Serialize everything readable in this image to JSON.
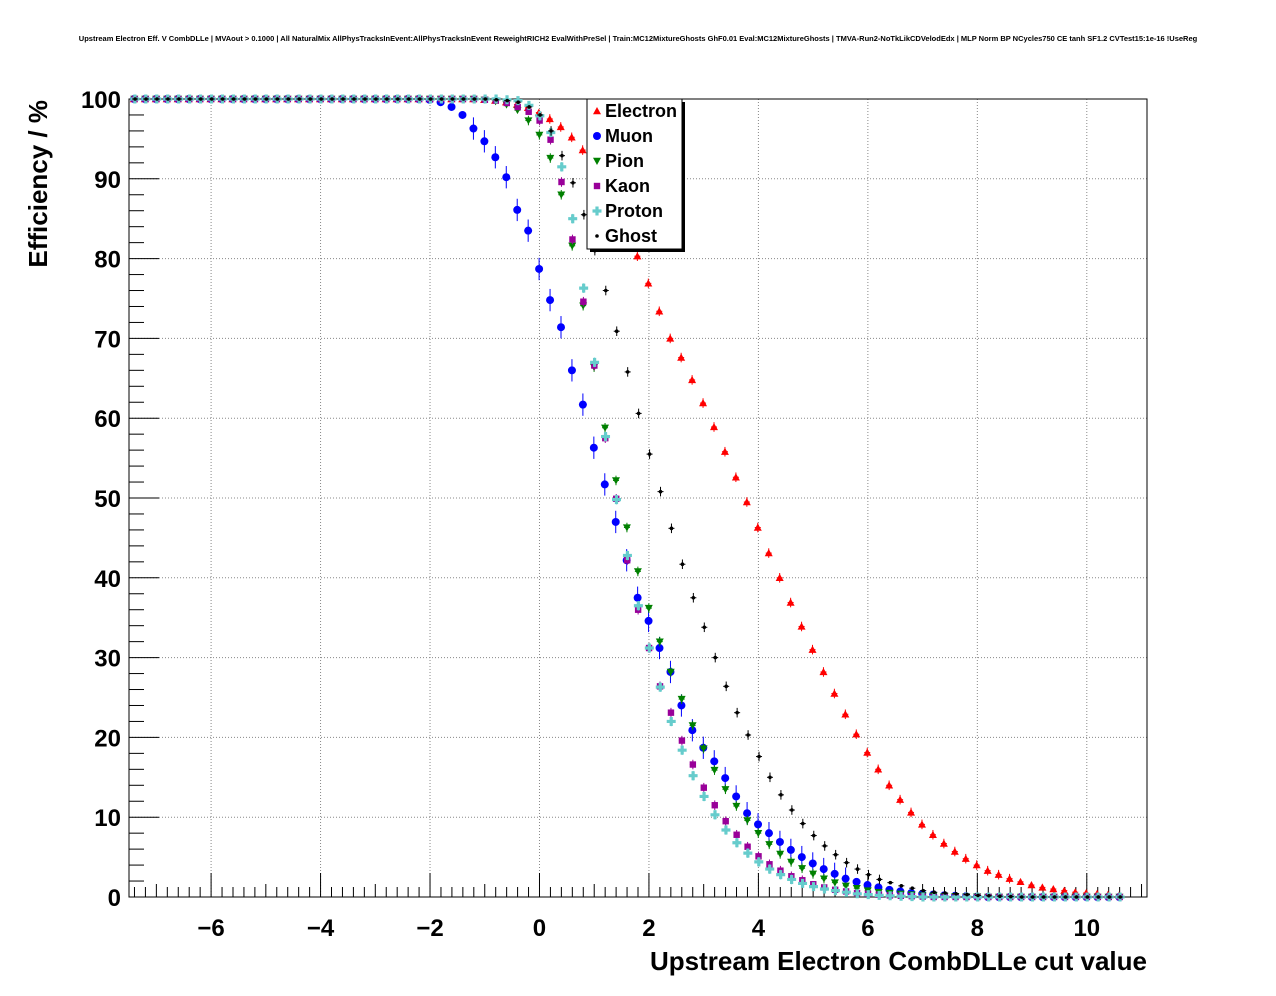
{
  "chart_data": {
    "type": "scatter",
    "title": "Upstream Electron Eff. V CombDLLe | MVAout > 0.1000 | All NaturalMix AllPhysTracksInEvent:AllPhysTracksInEvent ReweightRICH2 EvalWithPreSel | Train:MC12MixtureGhosts GhF0.01 Eval:MC12MixtureGhosts | TMVA-Run2-NoTkLikCDVelodEdx | MLP Norm BP NCycles750 CE tanh SF1.2 CVTest15:1e-16 !UseReg",
    "xlabel": "Upstream Electron CombDLLe cut value",
    "ylabel": "Efficiency / %",
    "xlim": [
      -7.5,
      11.1
    ],
    "ylim": [
      0,
      100
    ],
    "x_ticks": [
      -6,
      -4,
      -2,
      0,
      2,
      4,
      6,
      8,
      10
    ],
    "x_tick_labels": [
      "−6",
      "−4",
      "−2",
      "0",
      "2",
      "4",
      "6",
      "8",
      "10"
    ],
    "y_ticks": [
      0,
      10,
      20,
      30,
      40,
      50,
      60,
      70,
      80,
      90,
      100
    ],
    "y_tick_labels": [
      "0",
      "10",
      "20",
      "30",
      "40",
      "50",
      "60",
      "70",
      "80",
      "90",
      "100"
    ],
    "grid": true,
    "legend_position": "top-center",
    "series": [
      {
        "name": "Electron",
        "color": "#ff0000",
        "marker": "triangle-up",
        "x": [
          -7.4,
          -7.2,
          -7.0,
          -6.8,
          -6.6,
          -6.4,
          -6.2,
          -6.0,
          -5.8,
          -5.6,
          -5.4,
          -5.2,
          -5.0,
          -4.8,
          -4.6,
          -4.4,
          -4.2,
          -4.0,
          -3.8,
          -3.6,
          -3.4,
          -3.2,
          -3.0,
          -2.8,
          -2.6,
          -2.4,
          -2.2,
          -2.0,
          -1.8,
          -1.6,
          -1.4,
          -1.2,
          -1.0,
          -0.8,
          -0.6,
          -0.4,
          -0.2,
          0.0,
          0.2,
          0.4,
          0.6,
          0.8,
          1.0,
          1.2,
          1.4,
          1.6,
          1.8,
          2.0,
          2.2,
          2.4,
          2.6,
          2.8,
          3.0,
          3.2,
          3.4,
          3.6,
          3.8,
          4.0,
          4.2,
          4.4,
          4.6,
          4.8,
          5.0,
          5.2,
          5.4,
          5.6,
          5.8,
          6.0,
          6.2,
          6.4,
          6.6,
          6.8,
          7.0,
          7.2,
          7.4,
          7.6,
          7.8,
          8.0,
          8.2,
          8.4,
          8.6,
          8.8,
          9.0,
          9.2,
          9.4,
          9.6,
          9.8,
          10.0,
          10.2,
          10.4,
          10.6
        ],
        "y": [
          100,
          100,
          100,
          100,
          100,
          100,
          100,
          100,
          100,
          100,
          100,
          100,
          100,
          100,
          100,
          100,
          100,
          100,
          100,
          100,
          100,
          100,
          100,
          100,
          100,
          100,
          100,
          100,
          100,
          100,
          100,
          100,
          99.9,
          99.8,
          99.6,
          99.3,
          98.9,
          98.3,
          97.5,
          96.5,
          95.2,
          93.6,
          91.6,
          89.2,
          86.5,
          83.5,
          80.3,
          76.9,
          73.4,
          70.0,
          67.6,
          64.8,
          61.9,
          58.9,
          55.8,
          52.6,
          49.5,
          46.3,
          43.1,
          40.0,
          36.9,
          33.9,
          31.0,
          28.2,
          25.5,
          22.9,
          20.4,
          18.1,
          16.0,
          14.0,
          12.2,
          10.6,
          9.1,
          7.8,
          6.7,
          5.7,
          4.8,
          4.0,
          3.3,
          2.8,
          2.3,
          1.9,
          1.5,
          1.2,
          1.0,
          0.8,
          0.6,
          0.5,
          0.4,
          0.3,
          0.2
        ]
      },
      {
        "name": "Muon",
        "color": "#0000ff",
        "marker": "circle",
        "x": [
          -7.4,
          -7.2,
          -7.0,
          -6.8,
          -6.6,
          -6.4,
          -6.2,
          -6.0,
          -5.8,
          -5.6,
          -5.4,
          -5.2,
          -5.0,
          -4.8,
          -4.6,
          -4.4,
          -4.2,
          -4.0,
          -3.8,
          -3.6,
          -3.4,
          -3.2,
          -3.0,
          -2.8,
          -2.6,
          -2.4,
          -2.2,
          -2.0,
          -1.8,
          -1.6,
          -1.4,
          -1.2,
          -1.0,
          -0.8,
          -0.6,
          -0.4,
          -0.2,
          0.0,
          0.2,
          0.4,
          0.6,
          0.8,
          1.0,
          1.2,
          1.4,
          1.6,
          1.8,
          2.0,
          2.2,
          2.4,
          2.6,
          2.8,
          3.0,
          3.2,
          3.4,
          3.6,
          3.8,
          4.0,
          4.2,
          4.4,
          4.6,
          4.8,
          5.0,
          5.2,
          5.4,
          5.6,
          5.8,
          6.0,
          6.2,
          6.4,
          6.6,
          6.8,
          7.0,
          7.2,
          7.4,
          7.6,
          7.8,
          8.0,
          8.2,
          8.4,
          8.6,
          8.8,
          9.0,
          9.2,
          9.4,
          9.6,
          9.8,
          10.0,
          10.2,
          10.4,
          10.6
        ],
        "y": [
          100,
          100,
          100,
          100,
          100,
          100,
          100,
          100,
          100,
          100,
          100,
          100,
          100,
          100,
          100,
          100,
          100,
          100,
          100,
          100,
          100,
          100,
          100,
          100,
          100,
          100,
          100,
          99.9,
          99.6,
          99.0,
          98.0,
          96.3,
          94.7,
          92.7,
          90.2,
          86.1,
          83.5,
          78.7,
          74.8,
          71.4,
          66.0,
          61.7,
          56.3,
          51.7,
          47.0,
          42.2,
          37.5,
          34.6,
          31.2,
          28.2,
          24.0,
          20.9,
          18.7,
          17.0,
          14.9,
          12.6,
          10.5,
          9.1,
          8.0,
          6.9,
          5.9,
          5.0,
          4.2,
          3.5,
          2.9,
          2.3,
          1.9,
          1.5,
          1.2,
          0.9,
          0.7,
          0.5,
          0.4,
          0.3,
          0.2,
          0.15,
          0.1,
          0.05,
          0,
          0,
          0,
          0,
          0,
          0,
          0,
          0,
          0,
          0,
          0,
          0,
          0
        ]
      },
      {
        "name": "Pion",
        "color": "#008000",
        "marker": "triangle-down",
        "x": [
          -7.4,
          -7.2,
          -7.0,
          -6.8,
          -6.6,
          -6.4,
          -6.2,
          -6.0,
          -5.8,
          -5.6,
          -5.4,
          -5.2,
          -5.0,
          -4.8,
          -4.6,
          -4.4,
          -4.2,
          -4.0,
          -3.8,
          -3.6,
          -3.4,
          -3.2,
          -3.0,
          -2.8,
          -2.6,
          -2.4,
          -2.2,
          -2.0,
          -1.8,
          -1.6,
          -1.4,
          -1.2,
          -1.0,
          -0.8,
          -0.6,
          -0.4,
          -0.2,
          0.0,
          0.2,
          0.4,
          0.6,
          0.8,
          1.0,
          1.2,
          1.4,
          1.6,
          1.8,
          2.0,
          2.2,
          2.4,
          2.6,
          2.8,
          3.0,
          3.2,
          3.4,
          3.6,
          3.8,
          4.0,
          4.2,
          4.4,
          4.6,
          4.8,
          5.0,
          5.2,
          5.4,
          5.6,
          5.8,
          6.0,
          6.2,
          6.4,
          6.6,
          6.8,
          7.0,
          7.2,
          7.4,
          7.6,
          7.8,
          8.0,
          8.2,
          8.4,
          8.6,
          8.8,
          9.0,
          9.2,
          9.4,
          9.6,
          9.8,
          10.0,
          10.2,
          10.4,
          10.6
        ],
        "y": [
          100,
          100,
          100,
          100,
          100,
          100,
          100,
          100,
          100,
          100,
          100,
          100,
          100,
          100,
          100,
          100,
          100,
          100,
          100,
          100,
          100,
          100,
          100,
          100,
          100,
          100,
          100,
          100,
          100,
          100,
          100,
          100,
          99.9,
          99.7,
          99.3,
          98.6,
          97.3,
          95.5,
          92.6,
          88.0,
          81.6,
          74.1,
          66.4,
          58.8,
          52.2,
          46.3,
          40.8,
          36.2,
          32.0,
          28.2,
          24.8,
          21.5,
          18.6,
          15.9,
          13.5,
          11.4,
          9.6,
          8.0,
          6.6,
          5.4,
          4.4,
          3.6,
          2.9,
          2.3,
          1.8,
          1.4,
          1.1,
          0.8,
          0.6,
          0.5,
          0.4,
          0.3,
          0.2,
          0.15,
          0.1,
          0.1,
          0.05,
          0.05,
          0,
          0,
          0,
          0,
          0,
          0,
          0,
          0,
          0,
          0,
          0,
          0,
          0
        ]
      },
      {
        "name": "Kaon",
        "color": "#990099",
        "marker": "square",
        "x": [
          -7.4,
          -7.2,
          -7.0,
          -6.8,
          -6.6,
          -6.4,
          -6.2,
          -6.0,
          -5.8,
          -5.6,
          -5.4,
          -5.2,
          -5.0,
          -4.8,
          -4.6,
          -4.4,
          -4.2,
          -4.0,
          -3.8,
          -3.6,
          -3.4,
          -3.2,
          -3.0,
          -2.8,
          -2.6,
          -2.4,
          -2.2,
          -2.0,
          -1.8,
          -1.6,
          -1.4,
          -1.2,
          -1.0,
          -0.8,
          -0.6,
          -0.4,
          -0.2,
          0.0,
          0.2,
          0.4,
          0.6,
          0.8,
          1.0,
          1.2,
          1.4,
          1.6,
          1.8,
          2.0,
          2.2,
          2.4,
          2.6,
          2.8,
          3.0,
          3.2,
          3.4,
          3.6,
          3.8,
          4.0,
          4.2,
          4.4,
          4.6,
          4.8,
          5.0,
          5.2,
          5.4,
          5.6,
          5.8,
          6.0,
          6.2,
          6.4,
          6.6,
          6.8,
          7.0,
          7.2,
          7.4,
          7.6,
          7.8,
          8.0,
          8.2,
          8.4,
          8.6,
          8.8,
          9.0,
          9.2,
          9.4,
          9.6,
          9.8,
          10.0,
          10.2,
          10.4,
          10.6
        ],
        "y": [
          100,
          100,
          100,
          100,
          100,
          100,
          100,
          100,
          100,
          100,
          100,
          100,
          100,
          100,
          100,
          100,
          100,
          100,
          100,
          100,
          100,
          100,
          100,
          100,
          100,
          100,
          100,
          100,
          100,
          100,
          100,
          100,
          99.9,
          99.8,
          99.5,
          99.0,
          98.4,
          97.3,
          94.9,
          89.6,
          82.4,
          74.6,
          66.6,
          57.5,
          49.9,
          42.2,
          36.0,
          31.2,
          26.4,
          23.1,
          19.6,
          16.6,
          13.7,
          11.5,
          9.5,
          7.8,
          6.3,
          5.1,
          4.1,
          3.3,
          2.6,
          2.1,
          1.6,
          1.2,
          0.9,
          0.7,
          0.5,
          0.4,
          0.3,
          0.2,
          0.15,
          0.1,
          0.05,
          0,
          0,
          0,
          0,
          0,
          0,
          0,
          0,
          0,
          0,
          0,
          0,
          0,
          0,
          0,
          0,
          0,
          0
        ]
      },
      {
        "name": "Proton",
        "color": "#66cccc",
        "marker": "cross",
        "x": [
          -7.4,
          -7.2,
          -7.0,
          -6.8,
          -6.6,
          -6.4,
          -6.2,
          -6.0,
          -5.8,
          -5.6,
          -5.4,
          -5.2,
          -5.0,
          -4.8,
          -4.6,
          -4.4,
          -4.2,
          -4.0,
          -3.8,
          -3.6,
          -3.4,
          -3.2,
          -3.0,
          -2.8,
          -2.6,
          -2.4,
          -2.2,
          -2.0,
          -1.8,
          -1.6,
          -1.4,
          -1.2,
          -1.0,
          -0.8,
          -0.6,
          -0.4,
          -0.2,
          0.0,
          0.2,
          0.4,
          0.6,
          0.8,
          1.0,
          1.2,
          1.4,
          1.6,
          1.8,
          2.0,
          2.2,
          2.4,
          2.6,
          2.8,
          3.0,
          3.2,
          3.4,
          3.6,
          3.8,
          4.0,
          4.2,
          4.4,
          4.6,
          4.8,
          5.0,
          5.2,
          5.4,
          5.6,
          5.8,
          6.0,
          6.2,
          6.4,
          6.6,
          6.8,
          7.0,
          7.2,
          7.4,
          7.6,
          7.8,
          8.0,
          8.2,
          8.4,
          8.6,
          8.8,
          9.0,
          9.2,
          9.4,
          9.6,
          9.8,
          10.0,
          10.2,
          10.4,
          10.6
        ],
        "y": [
          100,
          100,
          100,
          100,
          100,
          100,
          100,
          100,
          100,
          100,
          100,
          100,
          100,
          100,
          100,
          100,
          100,
          100,
          100,
          100,
          100,
          100,
          100,
          100,
          100,
          100,
          100,
          100,
          100,
          100,
          100,
          100,
          100,
          100,
          99.9,
          99.8,
          99.2,
          97.9,
          95.8,
          91.5,
          85.0,
          76.3,
          67.0,
          57.7,
          49.8,
          42.8,
          36.5,
          31.2,
          26.3,
          22.0,
          18.4,
          15.2,
          12.6,
          10.3,
          8.4,
          6.8,
          5.5,
          4.4,
          3.5,
          2.8,
          2.2,
          1.7,
          1.3,
          1.0,
          0.8,
          0.6,
          0.4,
          0.3,
          0.2,
          0.15,
          0.1,
          0.05,
          0,
          0,
          0,
          0,
          0,
          0,
          0,
          0,
          0,
          0,
          0,
          0,
          0,
          0,
          0,
          0,
          0,
          0,
          0
        ]
      },
      {
        "name": "Ghost",
        "color": "#000000",
        "marker": "dot",
        "x": [
          -7.4,
          -7.2,
          -7.0,
          -6.8,
          -6.6,
          -6.4,
          -6.2,
          -6.0,
          -5.8,
          -5.6,
          -5.4,
          -5.2,
          -5.0,
          -4.8,
          -4.6,
          -4.4,
          -4.2,
          -4.0,
          -3.8,
          -3.6,
          -3.4,
          -3.2,
          -3.0,
          -2.8,
          -2.6,
          -2.4,
          -2.2,
          -2.0,
          -1.8,
          -1.6,
          -1.4,
          -1.2,
          -1.0,
          -0.8,
          -0.6,
          -0.4,
          -0.2,
          0.0,
          0.2,
          0.4,
          0.6,
          0.8,
          1.0,
          1.2,
          1.4,
          1.6,
          1.8,
          2.0,
          2.2,
          2.4,
          2.6,
          2.8,
          3.0,
          3.2,
          3.4,
          3.6,
          3.8,
          4.0,
          4.2,
          4.4,
          4.6,
          4.8,
          5.0,
          5.2,
          5.4,
          5.6,
          5.8,
          6.0,
          6.2,
          6.4,
          6.6,
          6.8,
          7.0,
          7.2,
          7.4,
          7.6,
          7.8,
          8.0,
          8.2,
          8.4,
          8.6,
          8.8,
          9.0,
          9.2,
          9.4,
          9.6,
          9.8,
          10.0,
          10.2,
          10.4,
          10.6
        ],
        "y": [
          100,
          100,
          100,
          100,
          100,
          100,
          100,
          100,
          100,
          100,
          100,
          100,
          100,
          100,
          100,
          100,
          100,
          100,
          100,
          100,
          100,
          100,
          100,
          100,
          100,
          100,
          100,
          100,
          100,
          100,
          100,
          100,
          100,
          99.9,
          99.8,
          99.6,
          99.0,
          98.0,
          96.0,
          92.9,
          89.5,
          85.5,
          81.0,
          76.0,
          70.9,
          65.8,
          60.6,
          55.5,
          50.8,
          46.2,
          41.7,
          37.5,
          33.8,
          30.0,
          26.4,
          23.1,
          20.3,
          17.6,
          15.0,
          12.8,
          10.9,
          9.2,
          7.7,
          6.4,
          5.3,
          4.3,
          3.5,
          2.8,
          2.2,
          1.8,
          1.4,
          1.1,
          0.8,
          0.6,
          0.5,
          0.4,
          0.3,
          0.2,
          0.15,
          0.1,
          0.05,
          0,
          0,
          0,
          0,
          0,
          0,
          0,
          0,
          0,
          0
        ]
      }
    ]
  }
}
